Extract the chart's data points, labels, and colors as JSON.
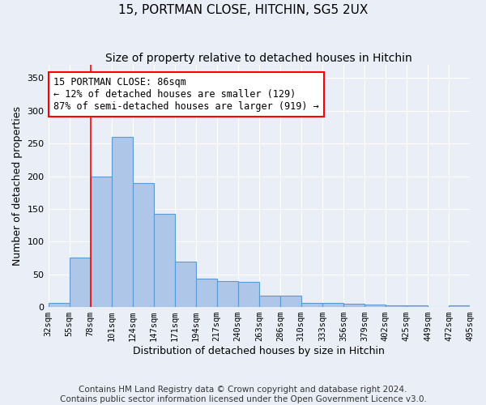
{
  "title": "15, PORTMAN CLOSE, HITCHIN, SG5 2UX",
  "subtitle": "Size of property relative to detached houses in Hitchin",
  "xlabel": "Distribution of detached houses by size in Hitchin",
  "ylabel": "Number of detached properties",
  "bar_values": [
    6,
    75,
    200,
    260,
    190,
    142,
    70,
    43,
    40,
    39,
    18,
    17,
    6,
    6,
    5,
    4,
    3,
    2,
    0,
    3
  ],
  "bar_labels": [
    "32sqm",
    "55sqm",
    "78sqm",
    "101sqm",
    "124sqm",
    "147sqm",
    "171sqm",
    "194sqm",
    "217sqm",
    "240sqm",
    "263sqm",
    "286sqm",
    "310sqm",
    "333sqm",
    "356sqm",
    "379sqm",
    "402sqm",
    "425sqm",
    "449sqm",
    "472sqm",
    "495sqm"
  ],
  "bar_color": "#aec6e8",
  "bar_edge_color": "#5b9bd5",
  "background_color": "#eaeef7",
  "grid_color": "#ffffff",
  "annotation_text": "15 PORTMAN CLOSE: 86sqm\n← 12% of detached houses are smaller (129)\n87% of semi-detached houses are larger (919) →",
  "red_line_x": 2,
  "ylim": [
    0,
    370
  ],
  "yticks": [
    0,
    50,
    100,
    150,
    200,
    250,
    300,
    350
  ],
  "footer_text": "Contains HM Land Registry data © Crown copyright and database right 2024.\nContains public sector information licensed under the Open Government Licence v3.0.",
  "title_fontsize": 11,
  "subtitle_fontsize": 10,
  "xlabel_fontsize": 9,
  "ylabel_fontsize": 9,
  "annotation_fontsize": 8.5,
  "footer_fontsize": 7.5,
  "tick_fontsize": 7.5
}
